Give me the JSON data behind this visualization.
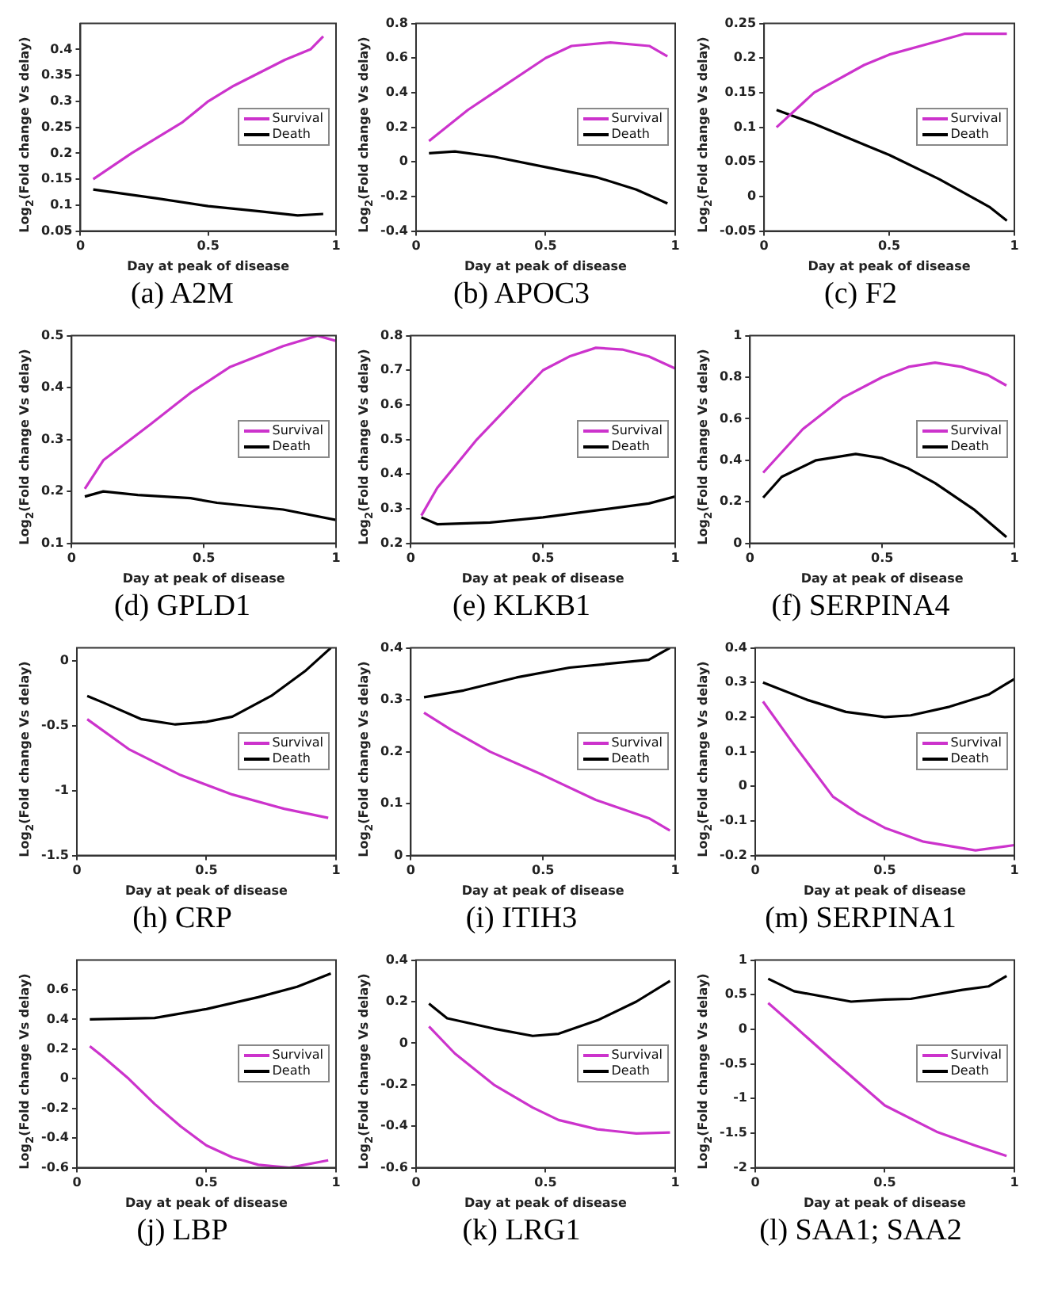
{
  "chart_data": [
    {
      "type": "line",
      "title": "(a) A2M",
      "xlabel": "Day at peak of disease",
      "ylabel": "Log$_{2}$(Fold change Vs delay)",
      "xlim": [
        0,
        1
      ],
      "xticks": [
        0,
        0.5,
        1
      ],
      "ylim": [
        0.05,
        0.45
      ],
      "yticks": [
        0.05,
        0.1,
        0.15,
        0.2,
        0.25,
        0.3,
        0.35,
        0.4
      ],
      "legend": "right",
      "series": [
        {
          "name": "Survival",
          "color": "#cc33cc",
          "x": [
            0.05,
            0.2,
            0.4,
            0.5,
            0.6,
            0.8,
            0.9,
            0.95
          ],
          "values": [
            0.15,
            0.2,
            0.26,
            0.3,
            0.33,
            0.38,
            0.4,
            0.425
          ]
        },
        {
          "name": "Death",
          "color": "#000000",
          "x": [
            0.05,
            0.3,
            0.5,
            0.7,
            0.85,
            0.95
          ],
          "values": [
            0.13,
            0.113,
            0.098,
            0.088,
            0.08,
            0.083
          ]
        }
      ]
    },
    {
      "type": "line",
      "title": "(b) APOC3",
      "xlabel": "Day at peak of disease",
      "ylabel": "Log$_{2}$(Fold change Vs delay)",
      "xlim": [
        0,
        1
      ],
      "xticks": [
        0,
        0.5,
        1
      ],
      "ylim": [
        -0.4,
        0.8
      ],
      "yticks": [
        -0.4,
        -0.2,
        0,
        0.2,
        0.4,
        0.6,
        0.8
      ],
      "legend": "right",
      "series": [
        {
          "name": "Survival",
          "color": "#cc33cc",
          "x": [
            0.05,
            0.2,
            0.3,
            0.5,
            0.6,
            0.75,
            0.9,
            0.97
          ],
          "values": [
            0.12,
            0.3,
            0.4,
            0.6,
            0.67,
            0.69,
            0.67,
            0.61
          ]
        },
        {
          "name": "Death",
          "color": "#000000",
          "x": [
            0.05,
            0.15,
            0.3,
            0.5,
            0.7,
            0.85,
            0.97
          ],
          "values": [
            0.05,
            0.06,
            0.03,
            -0.03,
            -0.09,
            -0.16,
            -0.24
          ]
        }
      ]
    },
    {
      "type": "line",
      "title": "(c) F2",
      "xlabel": "Day at peak of disease",
      "ylabel": "Log$_{2}$(Fold change Vs delay)",
      "xlim": [
        0,
        1
      ],
      "xticks": [
        0,
        0.5,
        1
      ],
      "ylim": [
        -0.05,
        0.25
      ],
      "yticks": [
        -0.05,
        0,
        0.05,
        0.1,
        0.15,
        0.2,
        0.25
      ],
      "legend": "right",
      "series": [
        {
          "name": "Survival",
          "color": "#cc33cc",
          "x": [
            0.05,
            0.2,
            0.4,
            0.5,
            0.7,
            0.8,
            0.97
          ],
          "values": [
            0.1,
            0.15,
            0.19,
            0.205,
            0.225,
            0.235,
            0.235
          ]
        },
        {
          "name": "Death",
          "color": "#000000",
          "x": [
            0.05,
            0.2,
            0.4,
            0.5,
            0.7,
            0.9,
            0.97
          ],
          "values": [
            0.125,
            0.105,
            0.075,
            0.06,
            0.025,
            -0.015,
            -0.035
          ]
        }
      ]
    },
    {
      "type": "line",
      "title": "(d) GPLD1",
      "xlabel": "Day at peak of disease",
      "ylabel": "Log$_{2}$(Fold change Vs delay)",
      "xlim": [
        0,
        1
      ],
      "xticks": [
        0,
        0.5,
        1
      ],
      "ylim": [
        0.1,
        0.5
      ],
      "yticks": [
        0.1,
        0.2,
        0.3,
        0.4,
        0.5
      ],
      "legend": "right",
      "series": [
        {
          "name": "Survival",
          "color": "#cc33cc",
          "x": [
            0.05,
            0.12,
            0.3,
            0.45,
            0.6,
            0.8,
            0.93,
            1
          ],
          "values": [
            0.205,
            0.26,
            0.33,
            0.39,
            0.44,
            0.48,
            0.5,
            0.49
          ]
        },
        {
          "name": "Death",
          "color": "#000000",
          "x": [
            0.05,
            0.12,
            0.25,
            0.45,
            0.55,
            0.8,
            1
          ],
          "values": [
            0.19,
            0.2,
            0.193,
            0.187,
            0.178,
            0.165,
            0.145
          ]
        }
      ]
    },
    {
      "type": "line",
      "title": "(e) KLKB1",
      "xlabel": "Day at peak of disease",
      "ylabel": "Log$_{2}$(Fold change Vs delay)",
      "xlim": [
        0,
        1
      ],
      "xticks": [
        0,
        0.5,
        1
      ],
      "ylim": [
        0.2,
        0.8
      ],
      "yticks": [
        0.2,
        0.3,
        0.4,
        0.5,
        0.6,
        0.7,
        0.8
      ],
      "legend": "right",
      "series": [
        {
          "name": "Survival",
          "color": "#cc33cc",
          "x": [
            0.04,
            0.1,
            0.25,
            0.4,
            0.5,
            0.6,
            0.7,
            0.8,
            0.9,
            1
          ],
          "values": [
            0.28,
            0.36,
            0.5,
            0.62,
            0.7,
            0.74,
            0.765,
            0.76,
            0.74,
            0.705
          ]
        },
        {
          "name": "Death",
          "color": "#000000",
          "x": [
            0.04,
            0.1,
            0.3,
            0.5,
            0.7,
            0.9,
            1
          ],
          "values": [
            0.275,
            0.255,
            0.26,
            0.275,
            0.295,
            0.315,
            0.335
          ]
        }
      ]
    },
    {
      "type": "line",
      "title": "(f) SERPINA4",
      "xlabel": "Day at peak of disease",
      "ylabel": "Log$_{2}$(Fold change Vs delay)",
      "xlim": [
        0,
        1
      ],
      "xticks": [
        0,
        0.5,
        1
      ],
      "ylim": [
        0,
        1
      ],
      "yticks": [
        0,
        0.2,
        0.4,
        0.6,
        0.8,
        1
      ],
      "legend": "right",
      "series": [
        {
          "name": "Survival",
          "color": "#cc33cc",
          "x": [
            0.05,
            0.2,
            0.35,
            0.5,
            0.6,
            0.7,
            0.8,
            0.9,
            0.97
          ],
          "values": [
            0.34,
            0.55,
            0.7,
            0.8,
            0.85,
            0.87,
            0.85,
            0.81,
            0.76
          ]
        },
        {
          "name": "Death",
          "color": "#000000",
          "x": [
            0.05,
            0.12,
            0.25,
            0.4,
            0.5,
            0.6,
            0.7,
            0.85,
            0.97
          ],
          "values": [
            0.22,
            0.32,
            0.4,
            0.43,
            0.41,
            0.36,
            0.29,
            0.16,
            0.03
          ]
        }
      ]
    },
    {
      "type": "line",
      "title": "(h) CRP",
      "xlabel": "Day at peak of disease",
      "ylabel": "Log$_{2}$(Fold change Vs delay)",
      "xlim": [
        0,
        1
      ],
      "xticks": [
        0,
        0.5,
        1
      ],
      "ylim": [
        -1.5,
        0.1
      ],
      "yticks": [
        -1.5,
        -1,
        -0.5,
        0
      ],
      "legend": "right",
      "series": [
        {
          "name": "Survival",
          "color": "#cc33cc",
          "x": [
            0.04,
            0.2,
            0.4,
            0.6,
            0.8,
            0.97
          ],
          "values": [
            -0.45,
            -0.68,
            -0.88,
            -1.03,
            -1.14,
            -1.21
          ]
        },
        {
          "name": "Death",
          "color": "#000000",
          "x": [
            0.04,
            0.1,
            0.25,
            0.38,
            0.5,
            0.6,
            0.75,
            0.88,
            0.98
          ],
          "values": [
            -0.27,
            -0.32,
            -0.45,
            -0.49,
            -0.47,
            -0.43,
            -0.27,
            -0.08,
            0.1
          ]
        }
      ]
    },
    {
      "type": "line",
      "title": "(i) ITIH3",
      "xlabel": "Day at peak of disease",
      "ylabel": "Log$_{2}$(Fold change Vs delay)",
      "xlim": [
        0,
        1
      ],
      "xticks": [
        0,
        0.5,
        1
      ],
      "ylim": [
        0,
        0.4
      ],
      "yticks": [
        0,
        0.1,
        0.2,
        0.3,
        0.4
      ],
      "legend": "right",
      "series": [
        {
          "name": "Survival",
          "color": "#cc33cc",
          "x": [
            0.05,
            0.15,
            0.3,
            0.5,
            0.7,
            0.9,
            0.98
          ],
          "values": [
            0.275,
            0.243,
            0.2,
            0.155,
            0.107,
            0.072,
            0.048
          ]
        },
        {
          "name": "Death",
          "color": "#000000",
          "x": [
            0.05,
            0.2,
            0.4,
            0.6,
            0.9,
            0.98
          ],
          "values": [
            0.305,
            0.318,
            0.343,
            0.362,
            0.377,
            0.4
          ]
        }
      ]
    },
    {
      "type": "line",
      "title": "(m) SERPINA1",
      "xlabel": "Day at peak of disease",
      "ylabel": "Log$_{2}$(Fold change Vs delay)",
      "xlim": [
        0,
        1
      ],
      "xticks": [
        0,
        0.5,
        1
      ],
      "ylim": [
        -0.2,
        0.4
      ],
      "yticks": [
        -0.2,
        -0.1,
        0,
        0.1,
        0.2,
        0.3,
        0.4
      ],
      "legend": "right",
      "series": [
        {
          "name": "Survival",
          "color": "#cc33cc",
          "x": [
            0.03,
            0.15,
            0.3,
            0.4,
            0.5,
            0.65,
            0.85,
            1
          ],
          "values": [
            0.245,
            0.12,
            -0.03,
            -0.08,
            -0.12,
            -0.16,
            -0.185,
            -0.17
          ]
        },
        {
          "name": "Death",
          "color": "#000000",
          "x": [
            0.03,
            0.2,
            0.35,
            0.5,
            0.6,
            0.75,
            0.9,
            1
          ],
          "values": [
            0.3,
            0.25,
            0.215,
            0.2,
            0.205,
            0.23,
            0.265,
            0.31
          ]
        }
      ]
    },
    {
      "type": "line",
      "title": "(j) LBP",
      "xlabel": "Day at peak of disease",
      "ylabel": "Log$_{2}$(Fold change Vs delay)",
      "xlim": [
        0,
        1
      ],
      "xticks": [
        0,
        0.5,
        1
      ],
      "ylim": [
        -0.6,
        0.8
      ],
      "yticks": [
        -0.6,
        -0.4,
        -0.2,
        0,
        0.2,
        0.4,
        0.6
      ],
      "legend": "right",
      "series": [
        {
          "name": "Survival",
          "color": "#cc33cc",
          "x": [
            0.05,
            0.1,
            0.2,
            0.3,
            0.4,
            0.5,
            0.6,
            0.7,
            0.82,
            0.97
          ],
          "values": [
            0.22,
            0.15,
            0,
            -0.17,
            -0.32,
            -0.45,
            -0.53,
            -0.58,
            -0.6,
            -0.55
          ]
        },
        {
          "name": "Death",
          "color": "#000000",
          "x": [
            0.05,
            0.3,
            0.5,
            0.7,
            0.85,
            0.98
          ],
          "values": [
            0.4,
            0.41,
            0.47,
            0.55,
            0.62,
            0.71
          ]
        }
      ]
    },
    {
      "type": "line",
      "title": "(k) LRG1",
      "xlabel": "Day at peak of disease",
      "ylabel": "Log$_{2}$(Fold change Vs delay)",
      "xlim": [
        0,
        1
      ],
      "xticks": [
        0,
        0.5,
        1
      ],
      "ylim": [
        -0.6,
        0.4
      ],
      "yticks": [
        -0.6,
        -0.4,
        -0.2,
        0,
        0.2,
        0.4
      ],
      "legend": "right",
      "series": [
        {
          "name": "Survival",
          "color": "#cc33cc",
          "x": [
            0.05,
            0.15,
            0.3,
            0.45,
            0.55,
            0.7,
            0.85,
            0.98
          ],
          "values": [
            0.08,
            -0.05,
            -0.2,
            -0.31,
            -0.37,
            -0.415,
            -0.435,
            -0.43
          ]
        },
        {
          "name": "Death",
          "color": "#000000",
          "x": [
            0.05,
            0.12,
            0.3,
            0.45,
            0.55,
            0.7,
            0.85,
            0.98
          ],
          "values": [
            0.19,
            0.12,
            0.07,
            0.035,
            0.045,
            0.11,
            0.2,
            0.3
          ]
        }
      ]
    },
    {
      "type": "line",
      "title": "(l) SAA1; SAA2",
      "xlabel": "Day at peak of disease",
      "ylabel": "Log$_{2}$(Fold change Vs delay)",
      "xlim": [
        0,
        1
      ],
      "xticks": [
        0,
        0.5,
        1
      ],
      "ylim": [
        -2,
        1
      ],
      "yticks": [
        -2,
        -1.5,
        -1,
        -0.5,
        0,
        0.5,
        1
      ],
      "legend": "right",
      "series": [
        {
          "name": "Survival",
          "color": "#cc33cc",
          "x": [
            0.05,
            0.15,
            0.3,
            0.5,
            0.7,
            0.85,
            0.97
          ],
          "values": [
            0.38,
            0.05,
            -0.45,
            -1.1,
            -1.48,
            -1.68,
            -1.83
          ]
        },
        {
          "name": "Death",
          "color": "#000000",
          "x": [
            0.05,
            0.15,
            0.37,
            0.5,
            0.6,
            0.8,
            0.9,
            0.97
          ],
          "values": [
            0.73,
            0.55,
            0.4,
            0.43,
            0.44,
            0.57,
            0.62,
            0.77
          ]
        }
      ]
    }
  ]
}
